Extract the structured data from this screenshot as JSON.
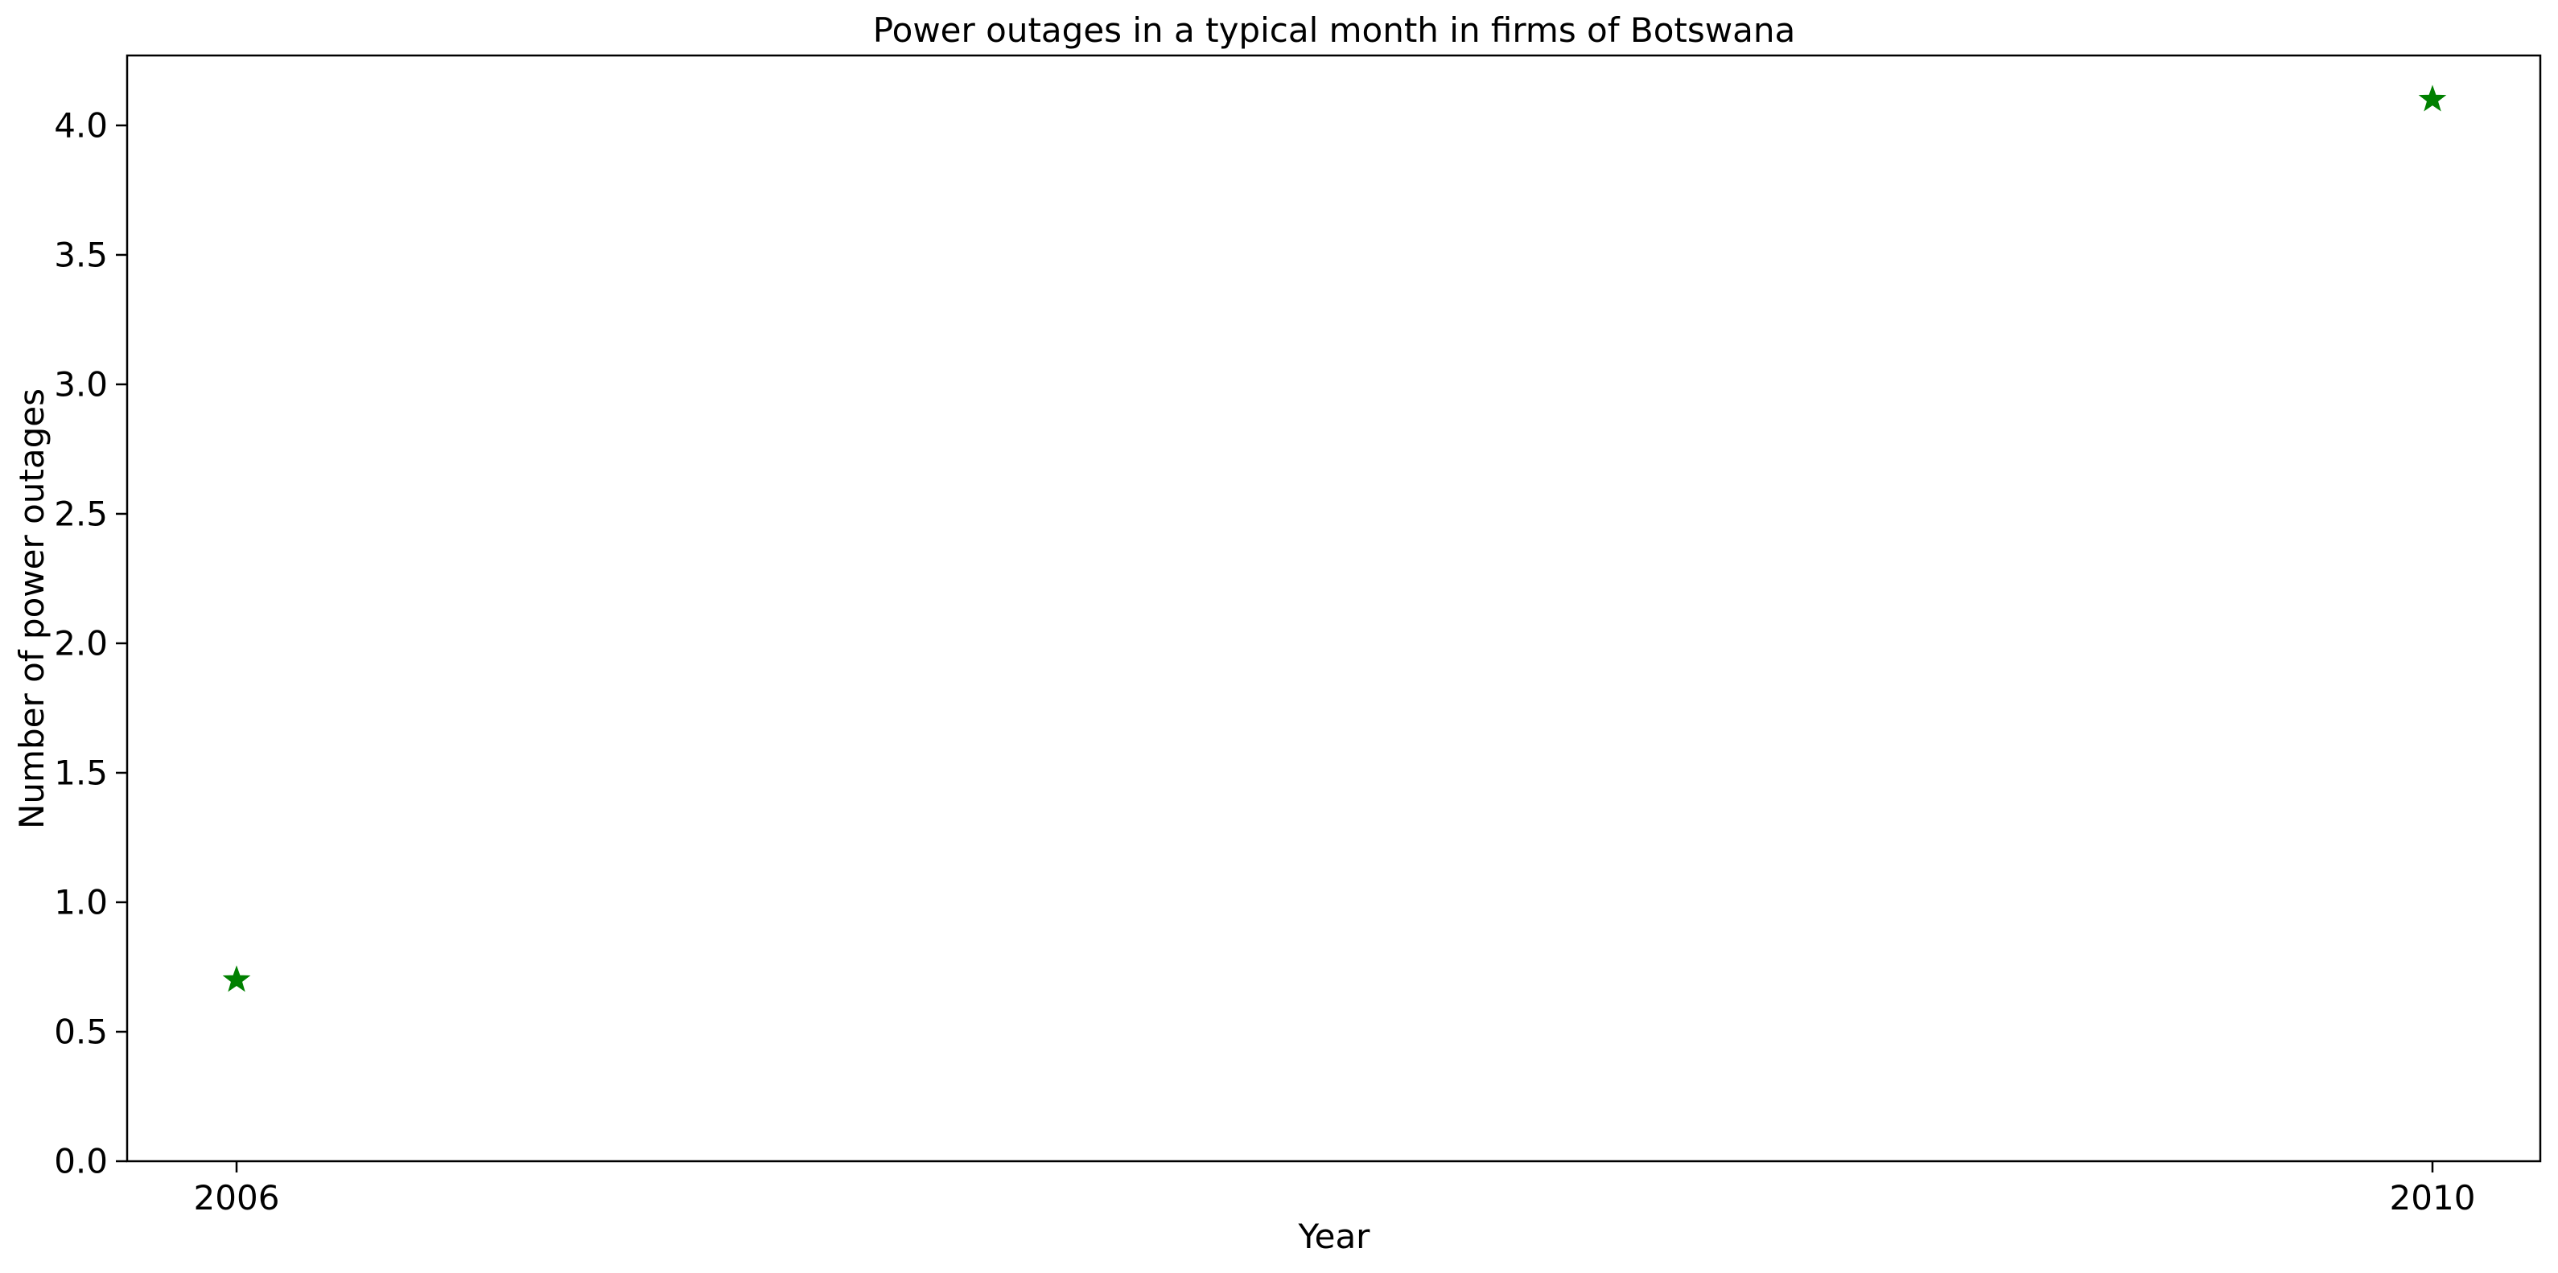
{
  "chart_data": {
    "type": "scatter",
    "title": "Power outages in a typical month in firms of Botswana",
    "xlabel": "Year",
    "ylabel": "Number of power outages",
    "x": [
      2006,
      2010
    ],
    "x_tick_labels": [
      "2006",
      "2010"
    ],
    "y": [
      0.7,
      4.1
    ],
    "ylim": [
      0,
      4.27
    ],
    "y_ticks": [
      0.0,
      0.5,
      1.0,
      1.5,
      2.0,
      2.5,
      3.0,
      3.5,
      4.0
    ],
    "y_tick_labels": [
      "0.0",
      "0.5",
      "1.0",
      "1.5",
      "2.0",
      "2.5",
      "3.0",
      "3.5",
      "4.0"
    ],
    "marker": "star",
    "marker_color": "#008000",
    "grid": false,
    "legend": null
  }
}
